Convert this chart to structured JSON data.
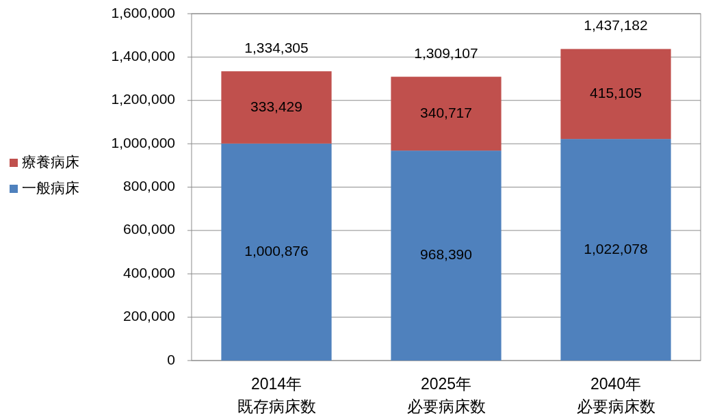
{
  "chart_data": {
    "type": "bar",
    "stacked": true,
    "categories": [
      "2014年既存病床数",
      "2025年必要病床数",
      "2040年必要病床数"
    ],
    "series": [
      {
        "name": "一般病床",
        "color": "#4f81bd",
        "values": [
          1000876,
          968390,
          1022078
        ],
        "value_labels": [
          "1,000,876",
          "968,390",
          "1,022,078"
        ]
      },
      {
        "name": "療養病床",
        "color": "#c0504d",
        "values": [
          333429,
          340717,
          415105
        ],
        "value_labels": [
          "333,429",
          "340,717",
          "415,105"
        ]
      }
    ],
    "totals": [
      "1,334,305",
      "1,309,107",
      "1,437,182"
    ],
    "ylim": [
      0,
      1600000
    ],
    "yticks": [
      0,
      {
        "value": 200000,
        "label": "200,000"
      },
      {
        "value": 400000,
        "label": "400,000"
      },
      {
        "value": 600000,
        "label": "600,000"
      },
      {
        "value": 800000,
        "label": "800,000"
      },
      {
        "value": 1000000,
        "label": "1,000,000"
      },
      {
        "value": 1200000,
        "label": "1,200,000"
      },
      {
        "value": 1400000,
        "label": "1,400,000"
      },
      {
        "value": 1600000,
        "label": "1,600,000"
      }
    ],
    "grid": "y",
    "legend": "left"
  }
}
